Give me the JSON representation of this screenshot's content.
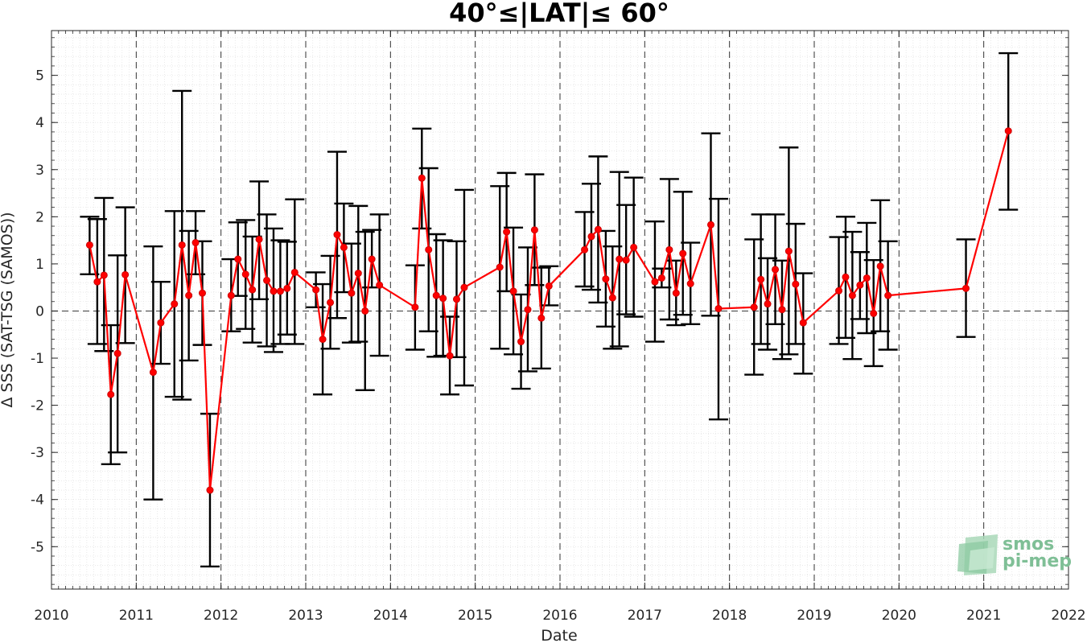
{
  "chart_data": {
    "type": "line",
    "title": "40°≤|LAT|≤ 60°",
    "xlabel": "Date",
    "ylabel": "Δ SSS (SAT-TSG (SAMOS))",
    "xlim": [
      2010,
      2022
    ],
    "ylim": [
      -5.9,
      5.95
    ],
    "x_ticks": [
      "2010",
      "2011",
      "2012",
      "2013",
      "2014",
      "2015",
      "2016",
      "2017",
      "2018",
      "2019",
      "2020",
      "2021",
      "2022"
    ],
    "y_ticks": [
      "-5",
      "-4",
      "-3",
      "-2",
      "-1",
      "0",
      "1",
      "2",
      "3",
      "4",
      "5"
    ],
    "grid": "minor dotted grid; dashed vertical lines at each year; dashed horizontal line at 0",
    "colors": {
      "series": "#ff0000",
      "errorbars": "#000000",
      "zero_line": "#555555"
    },
    "series": [
      {
        "points": [
          {
            "x": 2010.45,
            "y": 1.4,
            "lo": 0.78,
            "hi": 2.0
          },
          {
            "x": 2010.54,
            "y": 0.62,
            "lo": -0.7,
            "hi": 1.95
          },
          {
            "x": 2010.62,
            "y": 0.76,
            "lo": -0.85,
            "hi": 2.4
          },
          {
            "x": 2010.7,
            "y": -1.77,
            "lo": -3.25,
            "hi": -0.3
          },
          {
            "x": 2010.78,
            "y": -0.9,
            "lo": -3.0,
            "hi": 1.18
          },
          {
            "x": 2010.87,
            "y": 0.77,
            "lo": -0.68,
            "hi": 2.2
          },
          {
            "x": 2011.2,
            "y": -1.3,
            "lo": -4.0,
            "hi": 1.37
          },
          {
            "x": 2011.29,
            "y": -0.25,
            "lo": -1.12,
            "hi": 0.62
          },
          {
            "x": 2011.45,
            "y": 0.15,
            "lo": -1.82,
            "hi": 2.12
          },
          {
            "x": 2011.54,
            "y": 1.4,
            "lo": -1.88,
            "hi": 4.67
          },
          {
            "x": 2011.62,
            "y": 0.33,
            "lo": -1.05,
            "hi": 1.7
          },
          {
            "x": 2011.7,
            "y": 1.45,
            "lo": 0.78,
            "hi": 2.12
          },
          {
            "x": 2011.78,
            "y": 0.38,
            "lo": -0.72,
            "hi": 1.48
          },
          {
            "x": 2011.87,
            "y": -3.8,
            "lo": -5.42,
            "hi": -2.18
          },
          {
            "x": 2012.12,
            "y": 0.33,
            "lo": -0.43,
            "hi": 1.1
          },
          {
            "x": 2012.2,
            "y": 1.1,
            "lo": 0.32,
            "hi": 1.88
          },
          {
            "x": 2012.29,
            "y": 0.78,
            "lo": -0.38,
            "hi": 1.93
          },
          {
            "x": 2012.37,
            "y": 0.45,
            "lo": -0.67,
            "hi": 1.58
          },
          {
            "x": 2012.45,
            "y": 1.52,
            "lo": 0.25,
            "hi": 2.75
          },
          {
            "x": 2012.54,
            "y": 0.65,
            "lo": -0.75,
            "hi": 2.05
          },
          {
            "x": 2012.62,
            "y": 0.42,
            "lo": -0.87,
            "hi": 1.75
          },
          {
            "x": 2012.7,
            "y": 0.42,
            "lo": -0.7,
            "hi": 1.5
          },
          {
            "x": 2012.78,
            "y": 0.48,
            "lo": -0.5,
            "hi": 1.47
          },
          {
            "x": 2012.87,
            "y": 0.82,
            "lo": -0.7,
            "hi": 2.37
          },
          {
            "x": 2013.12,
            "y": 0.45,
            "lo": 0.08,
            "hi": 0.82
          },
          {
            "x": 2013.2,
            "y": -0.6,
            "lo": -1.77,
            "hi": 0.57
          },
          {
            "x": 2013.29,
            "y": 0.18,
            "lo": -0.8,
            "hi": 1.17
          },
          {
            "x": 2013.37,
            "y": 1.62,
            "lo": -0.15,
            "hi": 3.38
          },
          {
            "x": 2013.45,
            "y": 1.35,
            "lo": 0.4,
            "hi": 2.28
          },
          {
            "x": 2013.54,
            "y": 0.38,
            "lo": -0.67,
            "hi": 1.43
          },
          {
            "x": 2013.62,
            "y": 0.8,
            "lo": -0.65,
            "hi": 2.23
          },
          {
            "x": 2013.7,
            "y": 0.0,
            "lo": -1.68,
            "hi": 1.68
          },
          {
            "x": 2013.78,
            "y": 1.1,
            "lo": 0.5,
            "hi": 1.72
          },
          {
            "x": 2013.87,
            "y": 0.55,
            "lo": -0.95,
            "hi": 2.05
          },
          {
            "x": 2014.29,
            "y": 0.08,
            "lo": -0.82,
            "hi": 0.97
          },
          {
            "x": 2014.37,
            "y": 2.82,
            "lo": 1.75,
            "hi": 3.87
          },
          {
            "x": 2014.45,
            "y": 1.3,
            "lo": -0.43,
            "hi": 3.03
          },
          {
            "x": 2014.54,
            "y": 0.33,
            "lo": -0.97,
            "hi": 1.63
          },
          {
            "x": 2014.62,
            "y": 0.27,
            "lo": -0.95,
            "hi": 1.5
          },
          {
            "x": 2014.7,
            "y": -0.95,
            "lo": -1.77,
            "hi": -0.12
          },
          {
            "x": 2014.78,
            "y": 0.25,
            "lo": -0.98,
            "hi": 1.48
          },
          {
            "x": 2014.87,
            "y": 0.5,
            "lo": -1.58,
            "hi": 2.57
          },
          {
            "x": 2015.29,
            "y": 0.93,
            "lo": -0.8,
            "hi": 2.65
          },
          {
            "x": 2015.37,
            "y": 1.68,
            "lo": 0.42,
            "hi": 2.93
          },
          {
            "x": 2015.45,
            "y": 0.42,
            "lo": -0.92,
            "hi": 1.77
          },
          {
            "x": 2015.54,
            "y": -0.65,
            "lo": -1.65,
            "hi": 0.35
          },
          {
            "x": 2015.62,
            "y": 0.03,
            "lo": -1.28,
            "hi": 1.35
          },
          {
            "x": 2015.7,
            "y": 1.72,
            "lo": 0.55,
            "hi": 2.9
          },
          {
            "x": 2015.78,
            "y": -0.15,
            "lo": -1.22,
            "hi": 0.92
          },
          {
            "x": 2015.87,
            "y": 0.53,
            "lo": 0.12,
            "hi": 0.95
          },
          {
            "x": 2016.29,
            "y": 1.3,
            "lo": 0.52,
            "hi": 2.1
          },
          {
            "x": 2016.37,
            "y": 1.58,
            "lo": 0.45,
            "hi": 2.7
          },
          {
            "x": 2016.45,
            "y": 1.73,
            "lo": 0.18,
            "hi": 3.28
          },
          {
            "x": 2016.54,
            "y": 0.68,
            "lo": -0.33,
            "hi": 1.7
          },
          {
            "x": 2016.62,
            "y": 0.28,
            "lo": -0.8,
            "hi": 1.37
          },
          {
            "x": 2016.7,
            "y": 1.1,
            "lo": -0.75,
            "hi": 2.95
          },
          {
            "x": 2016.78,
            "y": 1.08,
            "lo": -0.07,
            "hi": 2.25
          },
          {
            "x": 2016.87,
            "y": 1.35,
            "lo": -0.12,
            "hi": 2.83
          },
          {
            "x": 2017.12,
            "y": 0.62,
            "lo": -0.65,
            "hi": 1.9
          },
          {
            "x": 2017.2,
            "y": 0.7,
            "lo": 0.5,
            "hi": 0.9
          },
          {
            "x": 2017.29,
            "y": 1.3,
            "lo": -0.18,
            "hi": 2.8
          },
          {
            "x": 2017.37,
            "y": 0.38,
            "lo": -0.3,
            "hi": 1.07
          },
          {
            "x": 2017.45,
            "y": 1.22,
            "lo": -0.08,
            "hi": 2.53
          },
          {
            "x": 2017.54,
            "y": 0.58,
            "lo": -0.28,
            "hi": 1.45
          },
          {
            "x": 2017.78,
            "y": 1.83,
            "lo": -0.1,
            "hi": 3.77
          },
          {
            "x": 2017.87,
            "y": 0.05,
            "lo": -2.3,
            "hi": 2.38
          },
          {
            "x": 2018.29,
            "y": 0.08,
            "lo": -1.35,
            "hi": 1.52
          },
          {
            "x": 2018.37,
            "y": 0.67,
            "lo": -0.7,
            "hi": 2.05
          },
          {
            "x": 2018.45,
            "y": 0.15,
            "lo": -0.82,
            "hi": 1.12
          },
          {
            "x": 2018.54,
            "y": 0.88,
            "lo": -0.28,
            "hi": 2.05
          },
          {
            "x": 2018.62,
            "y": 0.03,
            "lo": -1.02,
            "hi": 1.07
          },
          {
            "x": 2018.7,
            "y": 1.27,
            "lo": -0.92,
            "hi": 3.47
          },
          {
            "x": 2018.78,
            "y": 0.57,
            "lo": -0.7,
            "hi": 1.85
          },
          {
            "x": 2018.87,
            "y": -0.25,
            "lo": -1.33,
            "hi": 0.8
          },
          {
            "x": 2019.29,
            "y": 0.43,
            "lo": -0.7,
            "hi": 1.57
          },
          {
            "x": 2019.37,
            "y": 0.72,
            "lo": -0.57,
            "hi": 2.0
          },
          {
            "x": 2019.45,
            "y": 0.33,
            "lo": -1.02,
            "hi": 1.68
          },
          {
            "x": 2019.54,
            "y": 0.55,
            "lo": -0.17,
            "hi": 1.25
          },
          {
            "x": 2019.62,
            "y": 0.7,
            "lo": -0.47,
            "hi": 1.87
          },
          {
            "x": 2019.7,
            "y": -0.05,
            "lo": -1.17,
            "hi": 1.08
          },
          {
            "x": 2019.78,
            "y": 0.95,
            "lo": -0.43,
            "hi": 2.35
          },
          {
            "x": 2019.87,
            "y": 0.33,
            "lo": -0.82,
            "hi": 1.48
          },
          {
            "x": 2020.79,
            "y": 0.48,
            "lo": -0.55,
            "hi": 1.52
          },
          {
            "x": 2021.29,
            "y": 3.82,
            "lo": 2.15,
            "hi": 5.47
          }
        ]
      }
    ]
  },
  "logo": {
    "line1": "smos",
    "line2": "pi-mep"
  }
}
